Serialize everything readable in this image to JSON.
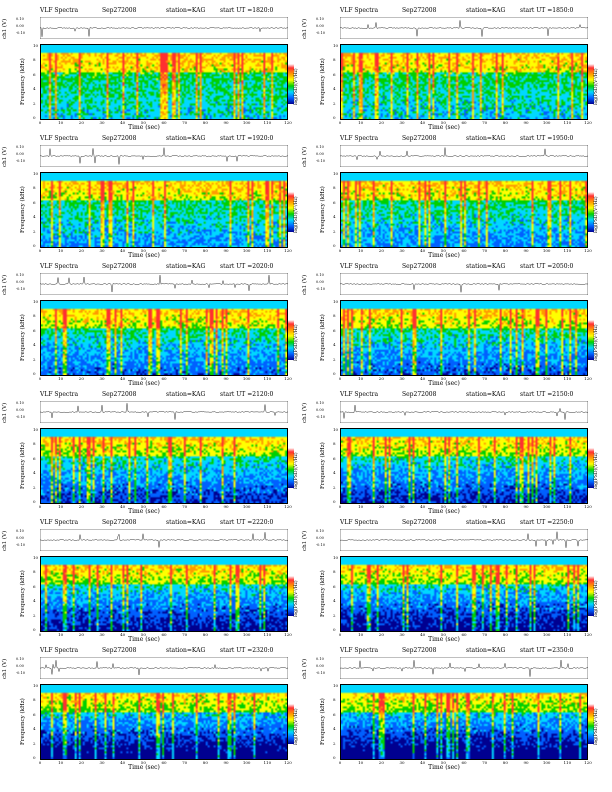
{
  "chart_data": {
    "type": "heatmap",
    "title_prefix": "VLF Spectra",
    "date": "Sep272008",
    "station": "station=KAG",
    "ch_label": "ch1 (V)",
    "ch_ticks": [
      "0.10",
      "0.00",
      "-0.10"
    ],
    "yticks": [
      "0",
      "2",
      "4",
      "6",
      "8",
      "10"
    ],
    "ylabel": "Frequency (kHz)",
    "xlabel": "Time (sec)",
    "xticks": [
      "0",
      "10",
      "20",
      "30",
      "40",
      "50",
      "60",
      "70",
      "80",
      "90",
      "100",
      "110",
      "120"
    ],
    "xlim": [
      0,
      120
    ],
    "ylim": [
      0,
      10
    ],
    "colorbar_label": "log(PSD)(V²/Hz)",
    "colors": [
      "#000090",
      "#0060ff",
      "#00d8ff",
      "#00d000",
      "#ffff00",
      "#ff9a00",
      "#ff3030",
      "#ffffff"
    ],
    "panels": [
      {
        "start_ut": "start UT =1820:0",
        "seed": 11
      },
      {
        "start_ut": "start UT =1850:0",
        "seed": 23
      },
      {
        "start_ut": "start UT =1920:0",
        "seed": 37
      },
      {
        "start_ut": "start UT =1950:0",
        "seed": 41
      },
      {
        "start_ut": "start UT =2020:0",
        "seed": 53
      },
      {
        "start_ut": "start UT =2050:0",
        "seed": 67
      },
      {
        "start_ut": "start UT =2120:0",
        "seed": 71
      },
      {
        "start_ut": "start UT =2150:0",
        "seed": 83
      },
      {
        "start_ut": "start UT =2220:0",
        "seed": 97
      },
      {
        "start_ut": "start UT =2250:0",
        "seed": 101
      },
      {
        "start_ut": "start UT =2320:0",
        "seed": 113
      },
      {
        "start_ut": "start UT =2350:0",
        "seed": 127
      }
    ]
  }
}
